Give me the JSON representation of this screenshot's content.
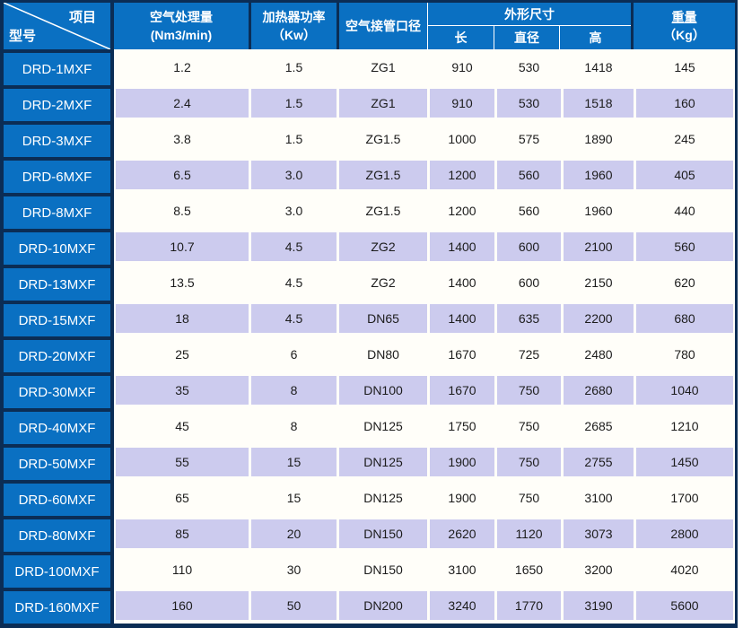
{
  "table": {
    "corner": {
      "top_right": "项目",
      "bottom_left": "型号"
    },
    "columns": {
      "capacity": {
        "line1": "空气处理量",
        "line2": "(Nm3/min)"
      },
      "heater": {
        "line1": "加热器功率",
        "line2": "（Kw）"
      },
      "pipe": "空气接管口径",
      "dims_group": "外形尺寸",
      "dims": [
        "长",
        "直径",
        "高"
      ],
      "weight": {
        "line1": "重量",
        "line2": "（Kg）"
      }
    },
    "rows": [
      {
        "model": "DRD-1MXF",
        "capacity": "1.2",
        "heater": "1.5",
        "pipe": "ZG1",
        "length": "910",
        "diameter": "530",
        "height": "1418",
        "weight": "145"
      },
      {
        "model": "DRD-2MXF",
        "capacity": "2.4",
        "heater": "1.5",
        "pipe": "ZG1",
        "length": "910",
        "diameter": "530",
        "height": "1518",
        "weight": "160"
      },
      {
        "model": "DRD-3MXF",
        "capacity": "3.8",
        "heater": "1.5",
        "pipe": "ZG1.5",
        "length": "1000",
        "diameter": "575",
        "height": "1890",
        "weight": "245"
      },
      {
        "model": "DRD-6MXF",
        "capacity": "6.5",
        "heater": "3.0",
        "pipe": "ZG1.5",
        "length": "1200",
        "diameter": "560",
        "height": "1960",
        "weight": "405"
      },
      {
        "model": "DRD-8MXF",
        "capacity": "8.5",
        "heater": "3.0",
        "pipe": "ZG1.5",
        "length": "1200",
        "diameter": "560",
        "height": "1960",
        "weight": "440"
      },
      {
        "model": "DRD-10MXF",
        "capacity": "10.7",
        "heater": "4.5",
        "pipe": "ZG2",
        "length": "1400",
        "diameter": "600",
        "height": "2100",
        "weight": "560"
      },
      {
        "model": "DRD-13MXF",
        "capacity": "13.5",
        "heater": "4.5",
        "pipe": "ZG2",
        "length": "1400",
        "diameter": "600",
        "height": "2150",
        "weight": "620"
      },
      {
        "model": "DRD-15MXF",
        "capacity": "18",
        "heater": "4.5",
        "pipe": "DN65",
        "length": "1400",
        "diameter": "635",
        "height": "2200",
        "weight": "680"
      },
      {
        "model": "DRD-20MXF",
        "capacity": "25",
        "heater": "6",
        "pipe": "DN80",
        "length": "1670",
        "diameter": "725",
        "height": "2480",
        "weight": "780"
      },
      {
        "model": "DRD-30MXF",
        "capacity": "35",
        "heater": "8",
        "pipe": "DN100",
        "length": "1670",
        "diameter": "750",
        "height": "2680",
        "weight": "1040"
      },
      {
        "model": "DRD-40MXF",
        "capacity": "45",
        "heater": "8",
        "pipe": "DN125",
        "length": "1750",
        "diameter": "750",
        "height": "2685",
        "weight": "1210"
      },
      {
        "model": "DRD-50MXF",
        "capacity": "55",
        "heater": "15",
        "pipe": "DN125",
        "length": "1900",
        "diameter": "750",
        "height": "2755",
        "weight": "1450"
      },
      {
        "model": "DRD-60MXF",
        "capacity": "65",
        "heater": "15",
        "pipe": "DN125",
        "length": "1900",
        "diameter": "750",
        "height": "3100",
        "weight": "1700"
      },
      {
        "model": "DRD-80MXF",
        "capacity": "85",
        "heater": "20",
        "pipe": "DN150",
        "length": "2620",
        "diameter": "1120",
        "height": "3073",
        "weight": "2800"
      },
      {
        "model": "DRD-100MXF",
        "capacity": "110",
        "heater": "30",
        "pipe": "DN150",
        "length": "3100",
        "diameter": "1650",
        "height": "3200",
        "weight": "4020"
      },
      {
        "model": "DRD-160MXF",
        "capacity": "160",
        "heater": "50",
        "pipe": "DN200",
        "length": "3240",
        "diameter": "1770",
        "height": "3190",
        "weight": "5600"
      }
    ],
    "colors": {
      "header_blue": "#0a70c2",
      "border_navy": "#0b2d55",
      "row_alt_lavender": "#cccbee",
      "row_white": "#fffef9",
      "header_text": "#ffffff",
      "data_text": "#1c1c1c"
    }
  }
}
